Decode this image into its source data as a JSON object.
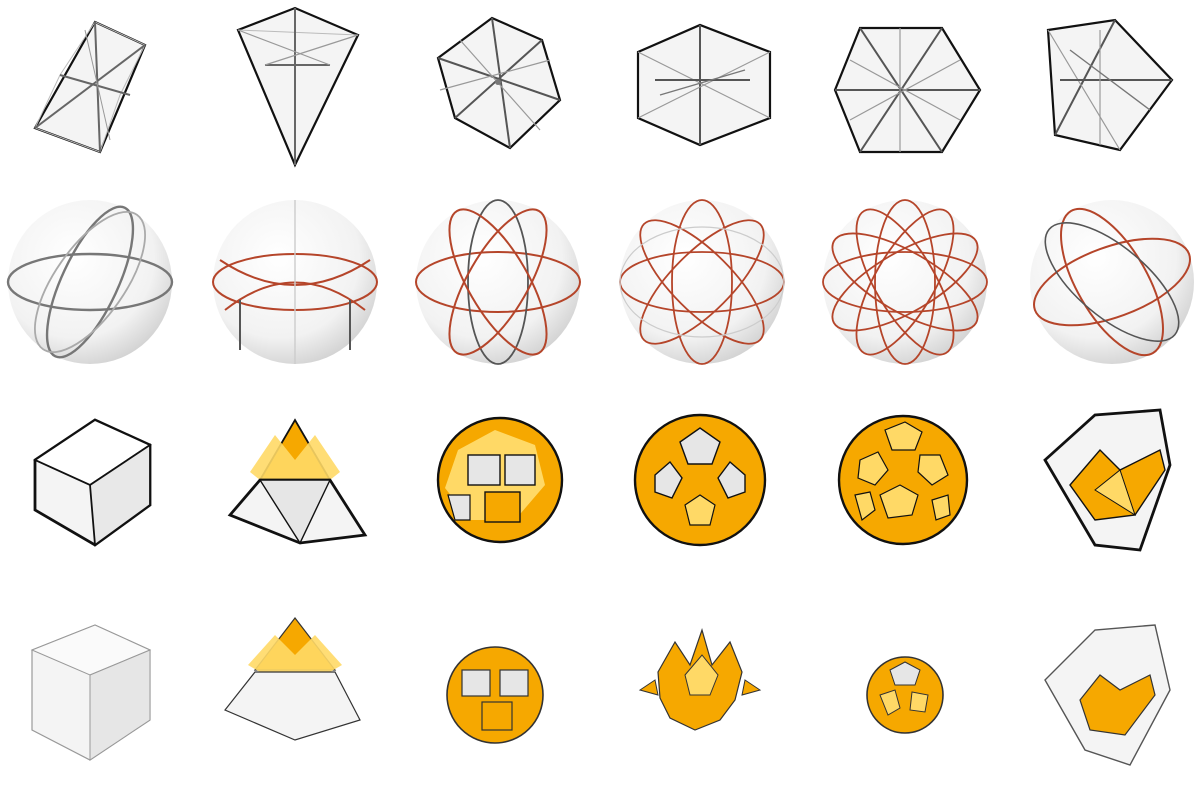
{
  "figure": {
    "rows": [
      {
        "id": "symmetry-axes",
        "items": [
          {
            "shape": "trapezoid-axes"
          },
          {
            "shape": "triangle-axes"
          },
          {
            "shape": "hexagon-axes"
          },
          {
            "shape": "flat-hexagon-axes"
          },
          {
            "shape": "regular-hexagon-axes"
          },
          {
            "shape": "pentagon-axes"
          }
        ]
      },
      {
        "id": "spheres",
        "items": [
          {
            "mesh": "sphere-great-circles",
            "edge_color": "#555555"
          },
          {
            "mesh": "sphere-mixed",
            "edge_color": "#b5452a"
          },
          {
            "mesh": "sphere-icosa",
            "edge_color": "#b5452a"
          },
          {
            "mesh": "sphere-dense",
            "edge_color": "#b5452a"
          },
          {
            "mesh": "sphere-densest",
            "edge_color": "#b5452a"
          },
          {
            "mesh": "sphere-tilted",
            "edge_color": "#b5452a"
          }
        ]
      },
      {
        "id": "polyhedra-outlined",
        "items": [
          {
            "solid": "cube",
            "fill": "#e8e8e8"
          },
          {
            "solid": "truncated-pyramid",
            "fill": "#f6a800"
          },
          {
            "solid": "rhombicuboctahedron",
            "fill": "#f6a800"
          },
          {
            "solid": "snub-dodecahedron",
            "fill": "#f6a800"
          },
          {
            "solid": "rhombicosidodecahedron",
            "fill": "#f6a800"
          },
          {
            "solid": "irregular-polyhedron",
            "fill": "#f6a800"
          }
        ]
      },
      {
        "id": "polyhedra-plain",
        "items": [
          {
            "solid": "cube",
            "fill": "#eeeeee"
          },
          {
            "solid": "truncated-pyramid",
            "fill": "#f6a800"
          },
          {
            "solid": "small-rhombicuboctahedron",
            "fill": "#f6a800"
          },
          {
            "solid": "spiky-star",
            "fill": "#f6a800"
          },
          {
            "solid": "small-rhombicosidodecahedron",
            "fill": "#f6a800"
          },
          {
            "solid": "irregular-polyhedron",
            "fill": "#f6a800"
          }
        ]
      }
    ],
    "colors": {
      "accent": "#f6a800",
      "accent_light": "#ffd966",
      "edge_dark": "#1a1a1a",
      "sphere_edge": "#b5452a",
      "gray_face": "#e6e6e6"
    }
  }
}
